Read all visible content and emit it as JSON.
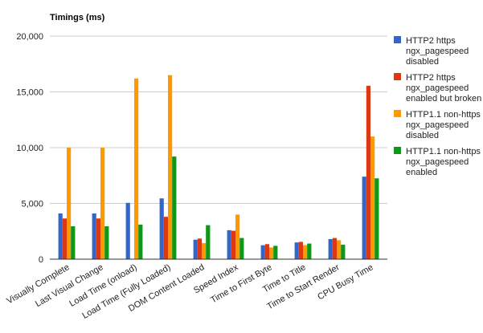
{
  "chart_data": {
    "type": "bar",
    "title": "Timings (ms)",
    "xlabel": "",
    "ylabel": "",
    "ylim": [
      0,
      20000
    ],
    "yticks": [
      0,
      5000,
      10000,
      15000,
      20000
    ],
    "ytick_labels": [
      "0",
      "5,000",
      "10,000",
      "15,000",
      "20,000"
    ],
    "grid": "horizontal",
    "legend_position": "right",
    "categories": [
      "Visually Complete",
      "Last Visual Change",
      "Load Time (onload)",
      "Load Time (Fully Loaded)",
      "DOM Content Loaded",
      "Speed Index",
      "Time to First Byte",
      "Time to Title",
      "Time to Start Render",
      "CPU Busy Time"
    ],
    "series": [
      {
        "name": "HTTP2 https ngx_pagespeed disabled",
        "legend_lines": [
          "HTTP2 https",
          "ngx_pagespeed",
          "disabled"
        ],
        "color": "#3366cc",
        "values": [
          4100,
          4100,
          5050,
          5450,
          1750,
          2600,
          1250,
          1500,
          1800,
          7400
        ]
      },
      {
        "name": "HTTP2 https ngx_pagespeed enabled but broken",
        "legend_lines": [
          "HTTP2 https",
          "ngx_pagespeed",
          "enabled but broken"
        ],
        "color": "#dc3912",
        "values": [
          3650,
          3650,
          0,
          3800,
          1850,
          2550,
          1350,
          1550,
          1900,
          15550
        ]
      },
      {
        "name": "HTTP1.1 non-https ngx_pagespeed disabled",
        "legend_lines": [
          "HTTP1.1 non-https",
          "ngx_pagespeed",
          "disabled"
        ],
        "color": "#ff9900",
        "values": [
          10000,
          10000,
          16200,
          16500,
          1450,
          4000,
          1050,
          1250,
          1700,
          11000
        ]
      },
      {
        "name": "HTTP1.1 non-https ngx_pagespeed enabled",
        "legend_lines": [
          "HTTP1.1 non-https",
          "ngx_pagespeed",
          "enabled"
        ],
        "color": "#109618",
        "values": [
          2950,
          2950,
          3100,
          9200,
          3050,
          1900,
          1200,
          1400,
          1300,
          7250
        ]
      }
    ]
  }
}
